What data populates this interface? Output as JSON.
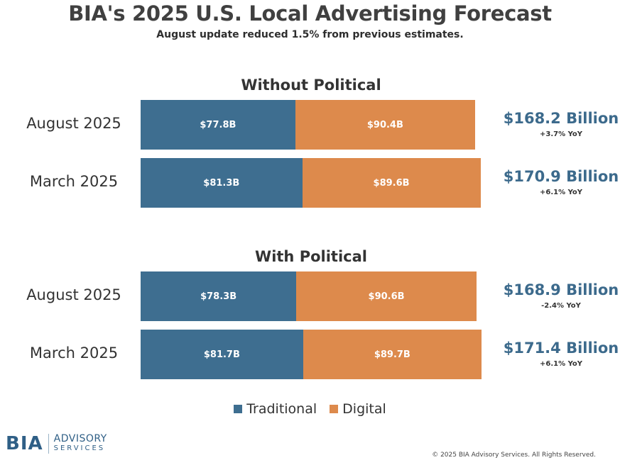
{
  "chart_data": {
    "type": "bar",
    "orientation": "horizontal",
    "stacked": true,
    "title": "BIA's 2025 U.S. Local Advertising Forecast",
    "subtitle": "August update reduced 1.5% from previous estimates.",
    "legend": {
      "placement": "bottom",
      "items": [
        {
          "name": "Traditional",
          "color": "#3e6e90"
        },
        {
          "name": "Digital",
          "color": "#dd8a4c"
        }
      ]
    },
    "groups": [
      {
        "title": "Without Political",
        "rows": [
          {
            "label": "August 2025",
            "traditional": 77.8,
            "traditional_label": "$77.8B",
            "digital": 90.4,
            "digital_label": "$90.4B",
            "total_label": "$168.2 Billion",
            "yoy_label": "+3.7% YoY"
          },
          {
            "label": "March 2025",
            "traditional": 81.3,
            "traditional_label": "$81.3B",
            "digital": 89.6,
            "digital_label": "$89.6B",
            "total_label": "$170.9 Billion",
            "yoy_label": "+6.1% YoY"
          }
        ]
      },
      {
        "title": "With Political",
        "rows": [
          {
            "label": "August 2025",
            "traditional": 78.3,
            "traditional_label": "$78.3B",
            "digital": 90.6,
            "digital_label": "$90.6B",
            "total_label": "$168.9 Billion",
            "yoy_label": "-2.4% YoY"
          },
          {
            "label": "March 2025",
            "traditional": 81.7,
            "traditional_label": "$81.7B",
            "digital": 89.7,
            "digital_label": "$89.7B",
            "total_label": "$171.4 Billion",
            "yoy_label": "+6.1% YoY"
          }
        ]
      }
    ]
  },
  "footer": {
    "logo_mark": "BIA",
    "logo_word1": "ADVISORY",
    "logo_word2": "SERVICES",
    "copyright": "© 2025 BIA Advisory Services. All Rights Reserved."
  }
}
